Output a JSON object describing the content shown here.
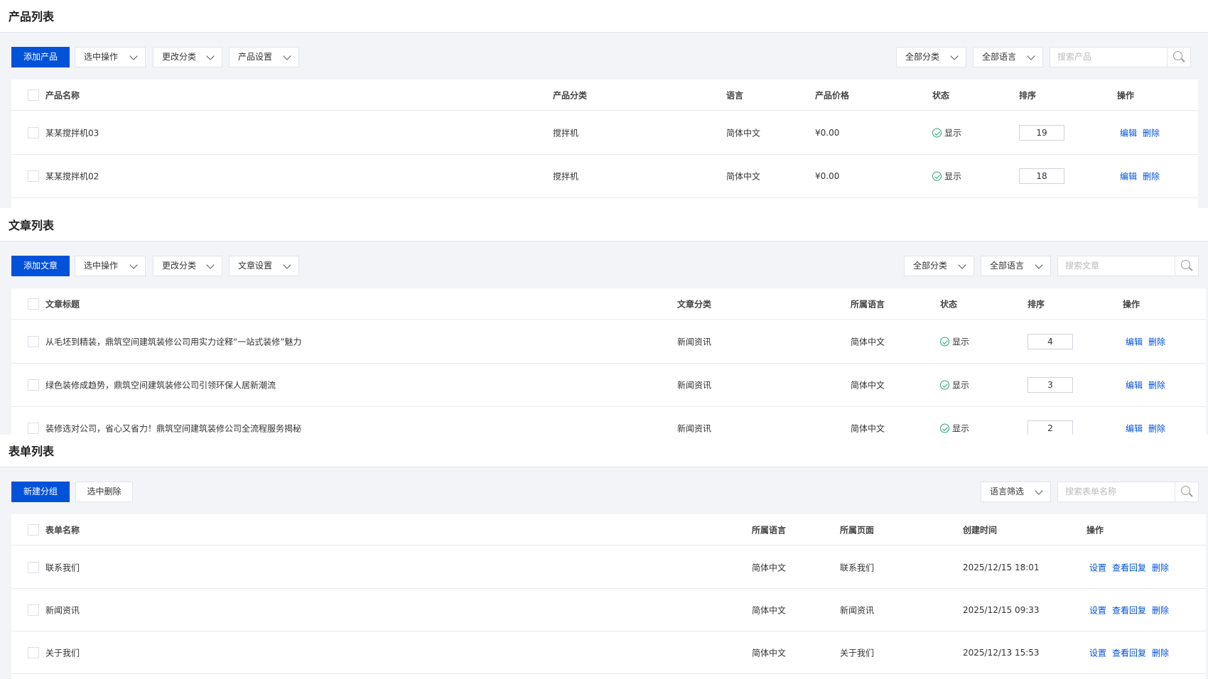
{
  "products": {
    "title": "产品列表",
    "add_label": "添加产品",
    "dropdowns": [
      "选中操作",
      "更改分类",
      "产品设置"
    ],
    "filters": [
      "全部分类",
      "全部语言"
    ],
    "search_placeholder": "搜索产品",
    "columns": [
      "产品名称",
      "产品分类",
      "语言",
      "产品价格",
      "状态",
      "排序",
      "操作"
    ],
    "rows": [
      {
        "name": "某某搅拌机03",
        "category": "搅拌机",
        "language": "简体中文",
        "price": "¥0.00",
        "status": "显示",
        "sort": "19",
        "actions": [
          "编辑",
          "删除"
        ]
      },
      {
        "name": "某某搅拌机02",
        "category": "搅拌机",
        "language": "简体中文",
        "price": "¥0.00",
        "status": "显示",
        "sort": "18",
        "actions": [
          "编辑",
          "删除"
        ]
      }
    ]
  },
  "articles": {
    "title": "文章列表",
    "add_label": "添加文章",
    "dropdowns": [
      "选中操作",
      "更改分类",
      "文章设置"
    ],
    "filters": [
      "全部分类",
      "全部语言"
    ],
    "search_placeholder": "搜索文章",
    "columns": [
      "文章标题",
      "文章分类",
      "所属语言",
      "状态",
      "排序",
      "操作"
    ],
    "rows": [
      {
        "name": "从毛坯到精装，鼎筑空间建筑装修公司用实力诠释“一站式装修”魅力",
        "category": "新闻资讯",
        "language": "简体中文",
        "status": "显示",
        "sort": "4",
        "actions": [
          "编辑",
          "删除"
        ]
      },
      {
        "name": "绿色装修成趋势，鼎筑空间建筑装修公司引领环保人居新潮流",
        "category": "新闻资讯",
        "language": "简体中文",
        "status": "显示",
        "sort": "3",
        "actions": [
          "编辑",
          "删除"
        ]
      },
      {
        "name": "装修选对公司，省心又省力！鼎筑空间建筑装修公司全流程服务揭秘",
        "category": "新闻资讯",
        "language": "简体中文",
        "status": "显示",
        "sort": "2",
        "actions": [
          "编辑",
          "删除"
        ]
      }
    ]
  },
  "forms": {
    "title": "表单列表",
    "add_label": "新建分组",
    "buttons": [
      "选中删除"
    ],
    "filters": [
      "语言筛选"
    ],
    "search_placeholder": "搜索表单名称",
    "columns": [
      "表单名称",
      "所属语言",
      "所属页面",
      "创建时间",
      "操作"
    ],
    "rows": [
      {
        "name": "联系我们",
        "language": "简体中文",
        "page": "联系我们",
        "created": "2025/12/15 18:01",
        "actions": [
          "设置",
          "查看回复",
          "删除"
        ]
      },
      {
        "name": "新闻资讯",
        "language": "简体中文",
        "page": "新闻资讯",
        "created": "2025/12/15 09:33",
        "actions": [
          "设置",
          "查看回复",
          "删除"
        ]
      },
      {
        "name": "关于我们",
        "language": "简体中文",
        "page": "关于我们",
        "created": "2025/12/13 15:53",
        "actions": [
          "设置",
          "查看回复",
          "删除"
        ]
      }
    ]
  },
  "colors": {
    "primary": "#0052d9",
    "success": "#2ba471",
    "band": "#f3f4f7"
  },
  "icons": [
    "chevron-down-icon",
    "search-icon",
    "check-circle-icon"
  ]
}
